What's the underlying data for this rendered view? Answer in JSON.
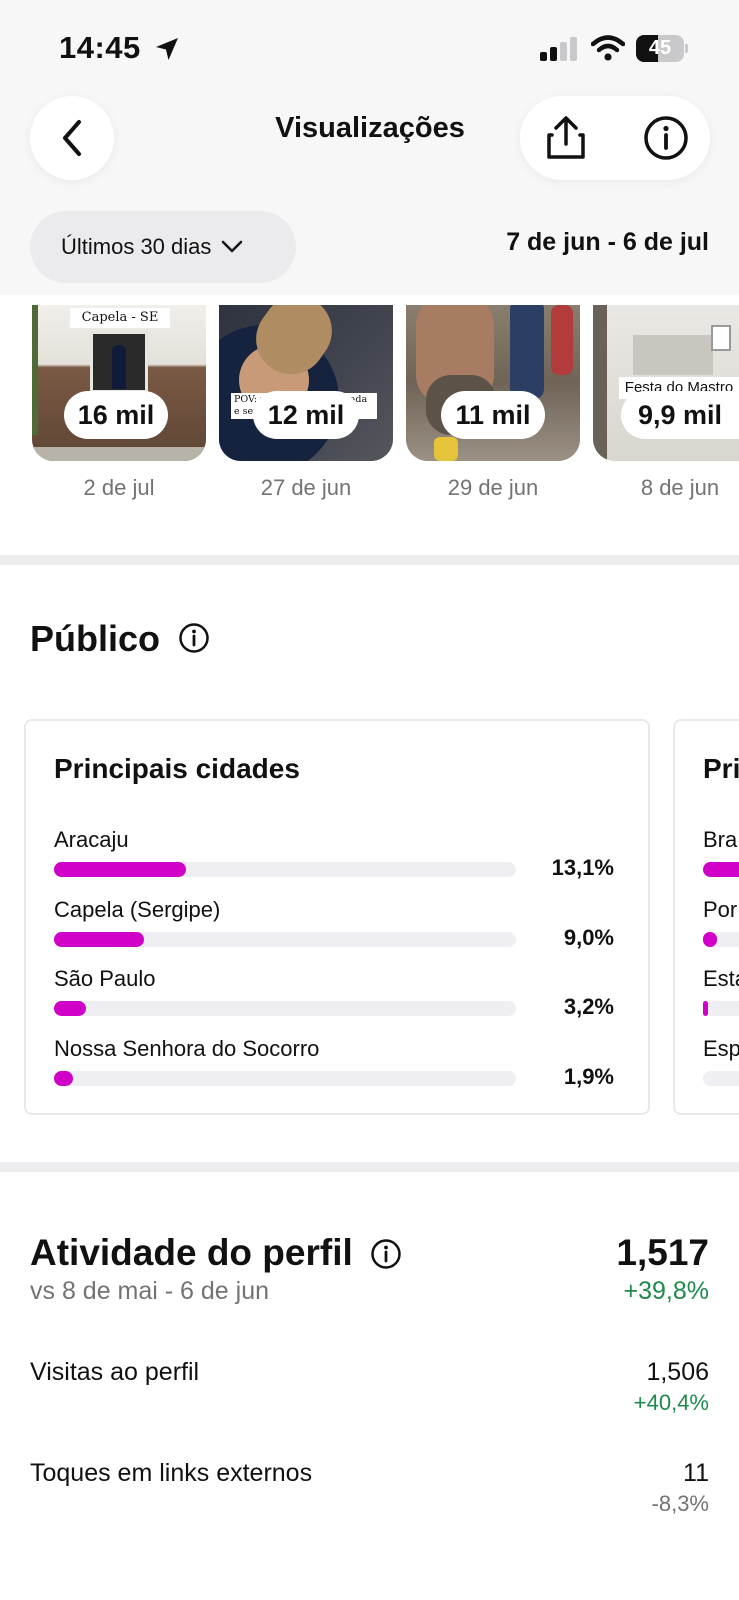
{
  "status_bar": {
    "time": "14:45",
    "battery_text": "45",
    "battery_level_percent": 45,
    "icons": [
      "location-arrow-icon",
      "signal-icon",
      "wifi-icon",
      "battery-icon"
    ]
  },
  "header": {
    "title": "Visualizações",
    "period_label": "Últimos 30 dias",
    "date_range": "7 de jun - 6 de jul",
    "icons": [
      "back-chevron-icon",
      "share-icon",
      "info-icon",
      "chevron-down-icon"
    ]
  },
  "thumbnails": [
    {
      "views": "16 mil",
      "date": "2 de jul",
      "caption": "Capela - SE"
    },
    {
      "views": "12 mil",
      "date": "27 de jun",
      "caption": "POV: você fica feliz do nada e seu marido... alerta"
    },
    {
      "views": "11 mil",
      "date": "29 de jun",
      "caption": ""
    },
    {
      "views": "9,9 mil",
      "date": "8 de jun",
      "caption": "Festa do Mastro"
    }
  ],
  "audience": {
    "title": "Público",
    "cities_card": {
      "title": "Principais cidades",
      "rows": [
        {
          "name": "Aracaju",
          "pct_label": "13,1%",
          "value": 13.1
        },
        {
          "name": "Capela (Sergipe)",
          "pct_label": "9,0%",
          "value": 9.0
        },
        {
          "name": "São Paulo",
          "pct_label": "3,2%",
          "value": 3.2
        },
        {
          "name": "Nossa Senhora do Socorro",
          "pct_label": "1,9%",
          "value": 1.9
        }
      ]
    },
    "second_card": {
      "title": "Pri",
      "rows": [
        {
          "name": "Bra",
          "value": 95
        },
        {
          "name": "Por",
          "value": 3
        },
        {
          "name": "Esta",
          "value": 1
        },
        {
          "name": "Esp",
          "value": 0
        }
      ]
    },
    "bar_color": "#d100c9"
  },
  "activity": {
    "title": "Atividade do perfil",
    "comparison": "vs 8 de mai - 6 de jun",
    "total": "1,517",
    "total_change": "+39,8%",
    "metrics": [
      {
        "label": "Visitas ao perfil",
        "value": "1,506",
        "change": "+40,4%",
        "trend": "up"
      },
      {
        "label": "Toques em links externos",
        "value": "11",
        "change": "-8,3%",
        "trend": "down"
      }
    ],
    "positive_color": "#1f8a4c",
    "negative_color": "#737376"
  }
}
